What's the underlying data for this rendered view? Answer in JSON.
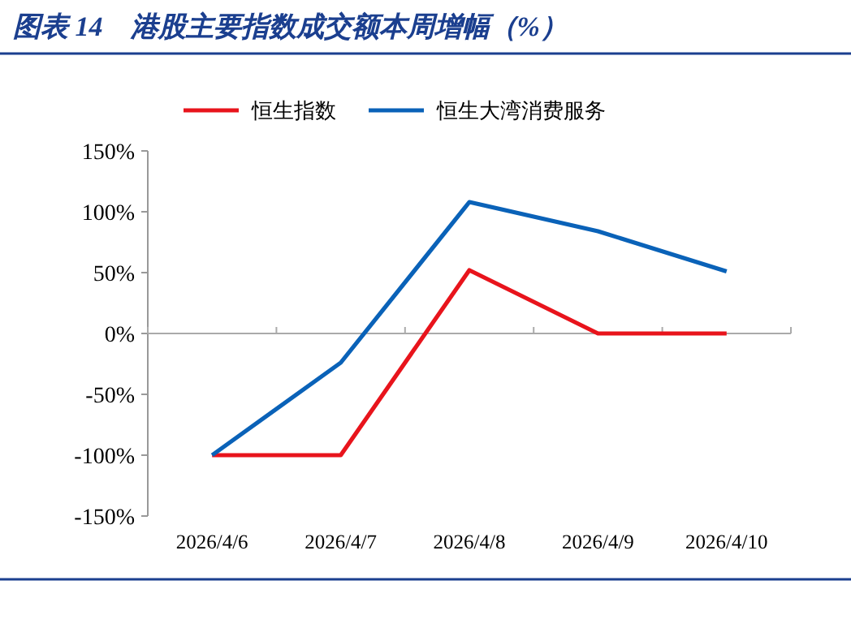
{
  "chart_data": {
    "type": "line",
    "title": "图表 14　港股主要指数成交额本周增幅（%）",
    "categories": [
      "2026/4/6",
      "2026/4/7",
      "2026/4/8",
      "2026/4/9",
      "2026/4/10"
    ],
    "series": [
      {
        "name": "恒生指数",
        "color": "#e8141c",
        "values": [
          -100,
          -100,
          52,
          0,
          0
        ]
      },
      {
        "name": "恒生大湾消费服务",
        "color": "#0a62b8",
        "values": [
          -100,
          -24,
          108,
          84,
          51
        ]
      }
    ],
    "ylim": [
      -150,
      150
    ],
    "yticks": [
      {
        "value": -150,
        "label": "-150%"
      },
      {
        "value": -100,
        "label": "-100%"
      },
      {
        "value": -50,
        "label": "-50%"
      },
      {
        "value": 0,
        "label": "0%"
      },
      {
        "value": 50,
        "label": "50%"
      },
      {
        "value": 100,
        "label": "100%"
      },
      {
        "value": 150,
        "label": "150%"
      }
    ],
    "legend": "top",
    "marker": "none",
    "line_style": "solid"
  }
}
